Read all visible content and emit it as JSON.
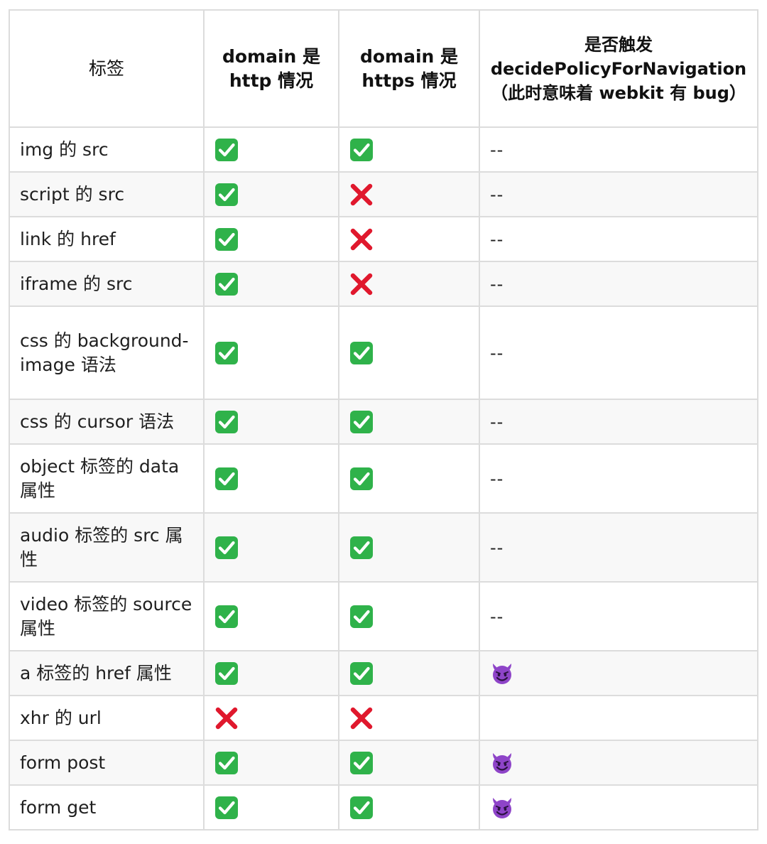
{
  "headers": [
    "标签",
    "domain 是 http 情况",
    "domain 是 https 情况",
    "是否触发 decidePolicyForNavigation（此时意味着 webkit 有 bug）"
  ],
  "rows": [
    {
      "label": "img 的 src",
      "http": "check-mark-icon",
      "https": "check-mark-icon",
      "trigger": "--"
    },
    {
      "label": "script 的 src",
      "http": "check-mark-icon",
      "https": "cross-mark-icon",
      "trigger": "--"
    },
    {
      "label": "link 的 href",
      "http": "check-mark-icon",
      "https": "cross-mark-icon",
      "trigger": "--"
    },
    {
      "label": "iframe 的 src",
      "http": "check-mark-icon",
      "https": "cross-mark-icon",
      "trigger": "--"
    },
    {
      "label": "css 的 background-image 语法",
      "http": "check-mark-icon",
      "https": "check-mark-icon",
      "trigger": "--"
    },
    {
      "label": "css 的 cursor 语法",
      "http": "check-mark-icon",
      "https": "check-mark-icon",
      "trigger": "--"
    },
    {
      "label": "object 标签的 data 属性",
      "http": "check-mark-icon",
      "https": "check-mark-icon",
      "trigger": "--"
    },
    {
      "label": "audio 标签的 src 属性",
      "http": "check-mark-icon",
      "https": "check-mark-icon",
      "trigger": "--"
    },
    {
      "label": "video 标签的 source 属性",
      "http": "check-mark-icon",
      "https": "check-mark-icon",
      "trigger": "--"
    },
    {
      "label": "a 标签的 href 属性",
      "http": "check-mark-icon",
      "https": "check-mark-icon",
      "trigger": "devil-face-icon"
    },
    {
      "label": "xhr 的 url",
      "http": "cross-mark-icon",
      "https": "cross-mark-icon",
      "trigger": ""
    },
    {
      "label": "form post",
      "http": "check-mark-icon",
      "https": "check-mark-icon",
      "trigger": "devil-face-icon"
    },
    {
      "label": "form get",
      "http": "check-mark-icon",
      "https": "check-mark-icon",
      "trigger": "devil-face-icon"
    }
  ],
  "colors": {
    "check_green": "#2fb24a",
    "cross_red": "#e0182d",
    "devil_purple": "#8e44c8",
    "border": "#dcdcdc",
    "stripe": "#f8f8f8"
  }
}
